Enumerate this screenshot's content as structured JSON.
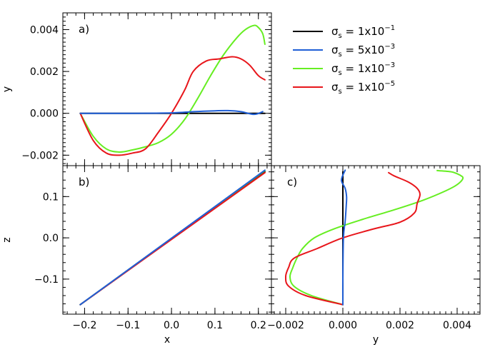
{
  "chart_data": [
    {
      "panel": "a",
      "type": "line",
      "panel_label": "a)",
      "xlabel": "",
      "ylabel": "y",
      "xlim": [
        -0.25,
        0.23
      ],
      "ylim": [
        -0.0025,
        0.0048
      ],
      "xticks": [],
      "yticks": [
        {
          "v": -0.002,
          "label": "−0.002"
        },
        {
          "v": 0.0,
          "label": "0.000"
        },
        {
          "v": 0.002,
          "label": "0.002"
        },
        {
          "v": 0.004,
          "label": "0.004"
        }
      ],
      "series": [
        {
          "id": "s1",
          "color": "#000000",
          "x": [
            -0.21,
            0.215
          ],
          "y": [
            0.0,
            0.0
          ]
        },
        {
          "id": "s2",
          "color": "#1f5fd6",
          "x": [
            -0.21,
            -0.1,
            0.0,
            0.05,
            0.1,
            0.13,
            0.16,
            0.19,
            0.21
          ],
          "y": [
            0.0,
            0.0,
            2e-05,
            8e-05,
            0.00012,
            0.00013,
            8e-05,
            -5e-05,
            8e-05
          ]
        },
        {
          "id": "s3",
          "color": "#66ee22",
          "x": [
            -0.21,
            -0.18,
            -0.15,
            -0.12,
            -0.09,
            -0.06,
            -0.03,
            0.0,
            0.03,
            0.06,
            0.09,
            0.12,
            0.15,
            0.17,
            0.19,
            0.2,
            0.21,
            0.215
          ],
          "y": [
            0.0,
            -0.0011,
            -0.0017,
            -0.00185,
            -0.00175,
            -0.0016,
            -0.0014,
            -0.001,
            -0.0003,
            0.0007,
            0.0018,
            0.0028,
            0.0036,
            0.004,
            0.0042,
            0.0041,
            0.0038,
            0.0033
          ]
        },
        {
          "id": "s4",
          "color": "#e8161b",
          "x": [
            -0.21,
            -0.18,
            -0.15,
            -0.12,
            -0.09,
            -0.06,
            -0.03,
            0.0,
            0.03,
            0.05,
            0.08,
            0.11,
            0.14,
            0.16,
            0.18,
            0.2,
            0.215
          ],
          "y": [
            0.0,
            -0.0013,
            -0.0019,
            -0.002,
            -0.0019,
            -0.0017,
            -0.0009,
            0.0,
            0.0011,
            0.002,
            0.0025,
            0.0026,
            0.0027,
            0.0026,
            0.0023,
            0.0018,
            0.0016
          ]
        }
      ]
    },
    {
      "panel": "b",
      "type": "line",
      "panel_label": "b)",
      "xlabel": "x",
      "ylabel": "z",
      "xlim": [
        -0.25,
        0.23
      ],
      "ylim": [
        -0.185,
        0.175
      ],
      "xticks": [
        {
          "v": -0.2,
          "label": "−0.2"
        },
        {
          "v": -0.1,
          "label": "−0.1"
        },
        {
          "v": 0.0,
          "label": "0.0"
        },
        {
          "v": 0.1,
          "label": "0.1"
        },
        {
          "v": 0.2,
          "label": "0.2"
        }
      ],
      "yticks": [
        {
          "v": -0.1,
          "label": "−0.1"
        },
        {
          "v": 0.0,
          "label": "0.0"
        },
        {
          "v": 0.1,
          "label": "0.1"
        }
      ],
      "series": [
        {
          "id": "s1",
          "color": "#000000",
          "x": [
            -0.21,
            0.215
          ],
          "y": [
            -0.162,
            0.16
          ]
        },
        {
          "id": "s2",
          "color": "#1f5fd6",
          "x": [
            -0.21,
            0.215
          ],
          "y": [
            -0.162,
            0.164
          ]
        },
        {
          "id": "s3",
          "color": "#66ee22",
          "x": [
            -0.21,
            0.215
          ],
          "y": [
            -0.162,
            0.163
          ]
        },
        {
          "id": "s4",
          "color": "#e8161b",
          "x": [
            -0.21,
            0.215
          ],
          "y": [
            -0.162,
            0.158
          ]
        }
      ]
    },
    {
      "panel": "c",
      "type": "line",
      "panel_label": "c)",
      "xlabel": "y",
      "ylabel": "",
      "xlim": [
        -0.0025,
        0.0048
      ],
      "ylim": [
        -0.185,
        0.175
      ],
      "xticks": [
        {
          "v": -0.002,
          "label": "−0.002"
        },
        {
          "v": 0.0,
          "label": "0.000"
        },
        {
          "v": 0.002,
          "label": "0.002"
        },
        {
          "v": 0.004,
          "label": "0.004"
        }
      ],
      "yticks": [],
      "series": [
        {
          "id": "s1",
          "color": "#000000",
          "x": [
            0.0,
            0.0
          ],
          "y": [
            -0.162,
            0.16
          ]
        },
        {
          "id": "s2",
          "color": "#1f5fd6",
          "x": [
            0.0,
            0.0,
            2e-05,
            8e-05,
            0.00012,
            0.00013,
            8e-05,
            -5e-05,
            8e-05
          ],
          "y": [
            -0.162,
            -0.1,
            0.0,
            0.04,
            0.08,
            0.1,
            0.12,
            0.14,
            0.164
          ]
        },
        {
          "id": "s3",
          "color": "#66ee22",
          "x": [
            0.0,
            -0.0011,
            -0.0017,
            -0.00185,
            -0.00175,
            -0.0016,
            -0.0014,
            -0.001,
            -0.0003,
            0.0007,
            0.0018,
            0.0028,
            0.0036,
            0.004,
            0.0042,
            0.0041,
            0.0038,
            0.0033
          ],
          "y": [
            -0.162,
            -0.14,
            -0.118,
            -0.095,
            -0.072,
            -0.048,
            -0.025,
            0.0,
            0.022,
            0.045,
            0.068,
            0.091,
            0.114,
            0.129,
            0.144,
            0.152,
            0.16,
            0.163
          ]
        },
        {
          "id": "s4",
          "color": "#e8161b",
          "x": [
            0.0,
            -0.0013,
            -0.0019,
            -0.002,
            -0.0019,
            -0.0017,
            -0.0009,
            0.0,
            0.0011,
            0.002,
            0.0025,
            0.0026,
            0.0027,
            0.0026,
            0.0023,
            0.0018,
            0.0016
          ],
          "y": [
            -0.162,
            -0.14,
            -0.117,
            -0.094,
            -0.072,
            -0.049,
            -0.026,
            0.0,
            0.022,
            0.038,
            0.06,
            0.083,
            0.105,
            0.12,
            0.135,
            0.15,
            0.158
          ]
        }
      ]
    }
  ],
  "legend": [
    {
      "series_id": "s1",
      "color": "#000000",
      "sym": "σ",
      "sub": "s",
      "eq": " = ",
      "mant": "1x10",
      "exp": "−1"
    },
    {
      "series_id": "s2",
      "color": "#1f5fd6",
      "sym": "σ",
      "sub": "s",
      "eq": " = ",
      "mant": "5x10",
      "exp": "−3"
    },
    {
      "series_id": "s3",
      "color": "#66ee22",
      "sym": "σ",
      "sub": "s",
      "eq": " = ",
      "mant": "1x10",
      "exp": "−3"
    },
    {
      "series_id": "s4",
      "color": "#e8161b",
      "sym": "σ",
      "sub": "s",
      "eq": " = ",
      "mant": "1x10",
      "exp": "−5"
    }
  ]
}
